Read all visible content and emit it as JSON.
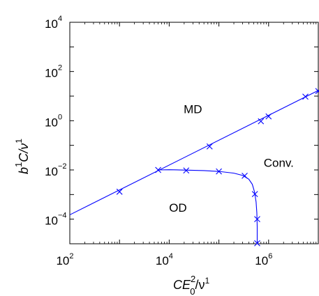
{
  "chart_data": {
    "type": "line",
    "xscale": "log",
    "yscale": "log",
    "xlim": [
      100,
      10000000
    ],
    "ylim": [
      1e-05,
      10000
    ],
    "grid": false,
    "xlabel": {
      "base": "CE",
      "sub": "0",
      "sup": "2",
      "rest": "/ν",
      "rest_sup": "1"
    },
    "ylabel": {
      "pre": "b",
      "pre_sup": "1",
      "mid": "C/ν",
      "mid_sup": "1"
    },
    "xticks": [
      {
        "value": 100,
        "base": "10",
        "exp": "2"
      },
      {
        "value": 10000,
        "base": "10",
        "exp": "4"
      },
      {
        "value": 1000000,
        "base": "10",
        "exp": "6"
      }
    ],
    "yticks": [
      {
        "value": 0.0001,
        "base": "10",
        "exp": "−4"
      },
      {
        "value": 0.01,
        "base": "10",
        "exp": "−2"
      },
      {
        "value": 1,
        "base": "10",
        "exp": "0"
      },
      {
        "value": 100,
        "base": "10",
        "exp": "2"
      },
      {
        "value": 10000,
        "base": "10",
        "exp": "4"
      }
    ],
    "regions": [
      {
        "label": "MD",
        "x": 30000,
        "y": 3
      },
      {
        "label": "Conv.",
        "x": 1600000,
        "y": 0.02
      },
      {
        "label": "OD",
        "x": 15000,
        "y": 0.0003
      }
    ],
    "series": [
      {
        "x": [
          100,
          10000000
        ],
        "y": [
          0.00015,
          17
        ],
        "markers": [
          {
            "x": 1000,
            "y": 0.0013
          },
          {
            "x": 65000,
            "y": 0.09
          },
          {
            "x": 700000,
            "y": 0.95
          },
          {
            "x": 1000000,
            "y": 1.5
          },
          {
            "x": 5500000,
            "y": 9.5
          },
          {
            "x": 10000000,
            "y": 16
          }
        ]
      },
      {
        "x": [
          6000,
          10000,
          20000,
          50000,
          100000,
          200000,
          300000,
          400000,
          470000,
          520000,
          560000,
          580000,
          590000,
          590000
        ],
        "y": [
          0.01,
          0.0102,
          0.0099,
          0.0094,
          0.0087,
          0.0074,
          0.006,
          0.0042,
          0.0026,
          0.0013,
          0.0005,
          0.00018,
          5e-05,
          1e-05
        ],
        "markers": [
          {
            "x": 6000,
            "y": 0.01
          },
          {
            "x": 22000,
            "y": 0.0095
          },
          {
            "x": 100000,
            "y": 0.0087
          },
          {
            "x": 330000,
            "y": 0.0058
          },
          {
            "x": 530000,
            "y": 0.00105
          },
          {
            "x": 590000,
            "y": 0.0001
          },
          {
            "x": 590000,
            "y": 1.05e-05
          }
        ]
      }
    ]
  }
}
